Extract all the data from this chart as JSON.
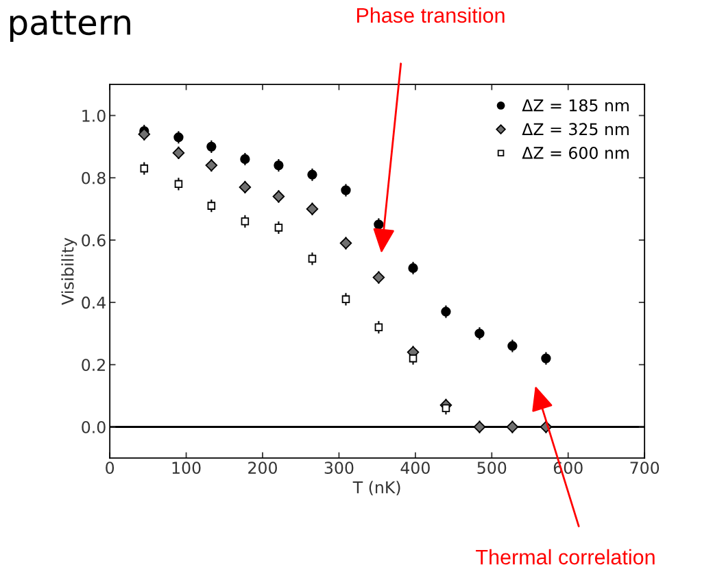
{
  "chart_data": {
    "type": "scatter",
    "title": "pattern",
    "xlabel": "T (nK)",
    "ylabel": "Visibility",
    "x": [
      45,
      90,
      133,
      177,
      221,
      265,
      309,
      352,
      397,
      440,
      484,
      527,
      571
    ],
    "series": [
      {
        "name": "ΔZ = 185 nm",
        "color": "#000000",
        "marker": "circle",
        "values": [
          0.95,
          0.93,
          0.9,
          0.86,
          0.84,
          0.81,
          0.76,
          0.65,
          0.51,
          0.37,
          0.3,
          0.26,
          0.22
        ],
        "errors": [
          0.02,
          0.02,
          0.02,
          0.02,
          0.02,
          0.02,
          0.02,
          0.02,
          0.02,
          0.02,
          0.02,
          0.02,
          0.02
        ]
      },
      {
        "name": "ΔZ = 325 nm",
        "color": "#707070",
        "marker": "diamond",
        "values": [
          0.94,
          0.88,
          0.84,
          0.77,
          0.74,
          0.7,
          0.59,
          0.48,
          0.24,
          0.07,
          0.0,
          0.0,
          0.0
        ],
        "errors": [
          0.02,
          0.02,
          0.02,
          0.02,
          0.02,
          0.02,
          0.02,
          0.02,
          0.02,
          0.02,
          0.02,
          0.02,
          0.02
        ]
      },
      {
        "name": "ΔZ = 600 nm",
        "color": "#ffffff",
        "marker": "square",
        "values": [
          0.83,
          0.78,
          0.71,
          0.66,
          0.64,
          0.54,
          0.41,
          0.32,
          0.22,
          0.06,
          null,
          null,
          null
        ],
        "errors": [
          0.02,
          0.02,
          0.02,
          0.02,
          0.02,
          0.02,
          0.02,
          0.02,
          0.02,
          0.02,
          null,
          null,
          null
        ]
      }
    ],
    "xlim": [
      0,
      700
    ],
    "xticks": [
      0,
      100,
      200,
      300,
      400,
      500,
      600,
      700
    ],
    "ylim": [
      -0.1,
      1.1
    ],
    "yticks": [
      {
        "value": 0,
        "label": "0.0"
      },
      {
        "value": 0.2,
        "label": "0.2"
      },
      {
        "value": 0.4,
        "label": "0.4"
      },
      {
        "value": 0.6,
        "label": "0.6"
      },
      {
        "value": 0.8,
        "label": "0.8"
      },
      {
        "value": 1.0,
        "label": "1.0"
      }
    ],
    "ref_lines": [
      {
        "axis": "y",
        "value": 0,
        "color": "#000000",
        "line_style": "solid"
      }
    ],
    "annotations": [
      "Phase transition",
      "Thermal correlation"
    ],
    "legend": "top right",
    "grid": false
  }
}
